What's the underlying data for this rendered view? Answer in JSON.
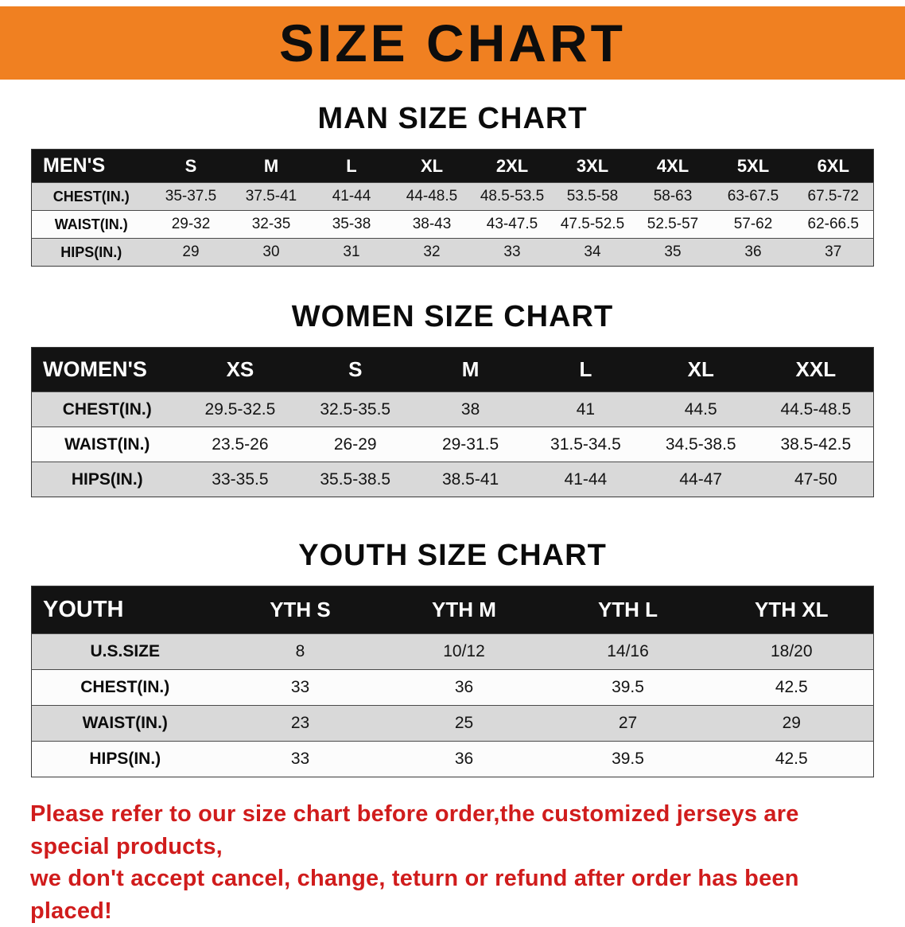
{
  "banner": {
    "title": "SIZE CHART",
    "bg_color": "#f08021",
    "text_color": "#0d0d0d"
  },
  "sections": [
    {
      "title": "MAN SIZE CHART",
      "header": [
        "MEN'S",
        "S",
        "M",
        "L",
        "XL",
        "2XL",
        "3XL",
        "4XL",
        "5XL",
        "6XL"
      ],
      "rows": [
        [
          "CHEST(IN.)",
          "35-37.5",
          "37.5-41",
          "41-44",
          "44-48.5",
          "48.5-53.5",
          "53.5-58",
          "58-63",
          "63-67.5",
          "67.5-72"
        ],
        [
          "WAIST(IN.)",
          "29-32",
          "32-35",
          "35-38",
          "38-43",
          "43-47.5",
          "47.5-52.5",
          "52.5-57",
          "57-62",
          "62-66.5"
        ],
        [
          "HIPS(IN.)",
          "29",
          "30",
          "31",
          "32",
          "33",
          "34",
          "35",
          "36",
          "37"
        ]
      ]
    },
    {
      "title": "WOMEN SIZE CHART",
      "header": [
        "WOMEN'S",
        "XS",
        "S",
        "M",
        "L",
        "XL",
        "XXL"
      ],
      "rows": [
        [
          "CHEST(IN.)",
          "29.5-32.5",
          "32.5-35.5",
          "38",
          "41",
          "44.5",
          "44.5-48.5"
        ],
        [
          "WAIST(IN.)",
          "23.5-26",
          "26-29",
          "29-31.5",
          "31.5-34.5",
          "34.5-38.5",
          "38.5-42.5"
        ],
        [
          "HIPS(IN.)",
          "33-35.5",
          "35.5-38.5",
          "38.5-41",
          "41-44",
          "44-47",
          "47-50"
        ]
      ]
    },
    {
      "title": "YOUTH SIZE CHART",
      "header": [
        "YOUTH",
        "YTH S",
        "YTH M",
        "YTH L",
        "YTH XL"
      ],
      "rows": [
        [
          "U.S.SIZE",
          "8",
          "10/12",
          "14/16",
          "18/20"
        ],
        [
          "CHEST(IN.)",
          "33",
          "36",
          "39.5",
          "42.5"
        ],
        [
          "WAIST(IN.)",
          "23",
          "25",
          "27",
          "29"
        ],
        [
          "HIPS(IN.)",
          "33",
          "36",
          "39.5",
          "42.5"
        ]
      ]
    }
  ],
  "footer": {
    "line1": "Please refer to our size chart before order,the customized jerseys are special products,",
    "line2": "we don't accept cancel, change, teturn or refund after order has been placed!",
    "color": "#d01c1c"
  }
}
